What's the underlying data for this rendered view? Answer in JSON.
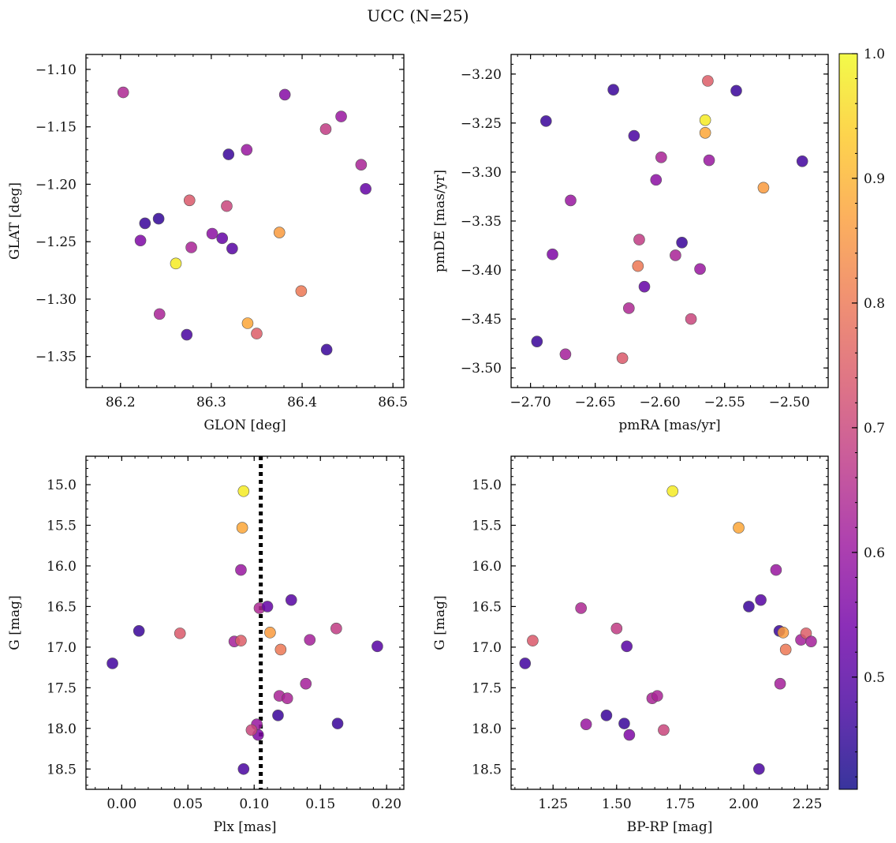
{
  "figure": {
    "title": "UCC (N=25)"
  },
  "colorbar": {
    "range": [
      0.41,
      1.0
    ],
    "ticks": [
      0.5,
      0.6,
      0.7,
      0.8,
      0.9,
      1.0
    ],
    "tick_labels": [
      "0.5",
      "0.6",
      "0.7",
      "0.8",
      "0.9",
      "1.0"
    ],
    "colormap": "plasma",
    "colors": [
      "#0d0887",
      "#46039f",
      "#7201a8",
      "#9c179e",
      "#bd3786",
      "#d8576b",
      "#ed7953",
      "#fb9f3a",
      "#fdca26",
      "#f0f921"
    ]
  },
  "chart_data": [
    {
      "id": "glon-glat",
      "type": "scatter",
      "xlabel": "GLON [deg]",
      "ylabel": "GLAT [deg]",
      "xlim": [
        86.162,
        86.512
      ],
      "ylim": [
        -1.377,
        -1.087
      ],
      "xticks": [
        86.2,
        86.3,
        86.4,
        86.5
      ],
      "xtick_labels": [
        "86.2",
        "86.3",
        "86.4",
        "86.5"
      ],
      "yticks": [
        -1.1,
        -1.15,
        -1.2,
        -1.25,
        -1.3,
        -1.35
      ],
      "ytick_labels": [
        "−1.10",
        "−1.15",
        "−1.20",
        "−1.25",
        "−1.30",
        "−1.35"
      ],
      "x": [
        86.203,
        86.381,
        86.443,
        86.426,
        86.339,
        86.319,
        86.465,
        86.47,
        86.276,
        86.317,
        86.227,
        86.242,
        86.222,
        86.375,
        86.301,
        86.312,
        86.278,
        86.323,
        86.261,
        86.399,
        86.243,
        86.34,
        86.35,
        86.273,
        86.427
      ],
      "y": [
        -1.12,
        -1.122,
        -1.141,
        -1.152,
        -1.17,
        -1.174,
        -1.183,
        -1.204,
        -1.214,
        -1.219,
        -1.234,
        -1.23,
        -1.249,
        -1.242,
        -1.243,
        -1.247,
        -1.255,
        -1.256,
        -1.269,
        -1.293,
        -1.313,
        -1.321,
        -1.33,
        -1.331,
        -1.344
      ],
      "prob": [
        0.64,
        0.57,
        0.6,
        0.68,
        0.6,
        0.46,
        0.63,
        0.52,
        0.74,
        0.7,
        0.46,
        0.45,
        0.56,
        0.86,
        0.58,
        0.52,
        0.63,
        0.5,
        0.98,
        0.8,
        0.63,
        0.88,
        0.75,
        0.48,
        0.46
      ]
    },
    {
      "id": "pmra-pmde",
      "type": "scatter",
      "xlabel": "pmRA [mas/yr]",
      "ylabel": "pmDE [mas/yr]",
      "xlim": [
        -2.715,
        -2.47
      ],
      "ylim": [
        -3.52,
        -3.18
      ],
      "xticks": [
        -2.7,
        -2.65,
        -2.6,
        -2.55,
        -2.5
      ],
      "xtick_labels": [
        "−2.70",
        "−2.65",
        "−2.60",
        "−2.55",
        "−2.50"
      ],
      "yticks": [
        -3.2,
        -3.25,
        -3.3,
        -3.35,
        -3.4,
        -3.45,
        -3.5
      ],
      "ytick_labels": [
        "−3.20",
        "−3.25",
        "−3.30",
        "−3.35",
        "−3.40",
        "−3.45",
        "−3.50"
      ],
      "x": [
        -2.563,
        -2.636,
        -2.541,
        -2.688,
        -2.565,
        -2.565,
        -2.62,
        -2.599,
        -2.562,
        -2.49,
        -2.52,
        -2.603,
        -2.669,
        -2.616,
        -2.583,
        -2.683,
        -2.588,
        -2.617,
        -2.569,
        -2.612,
        -2.576,
        -2.624,
        -2.695,
        -2.673,
        -2.629
      ],
      "y": [
        -3.207,
        -3.216,
        -3.217,
        -3.248,
        -3.247,
        -3.26,
        -3.263,
        -3.285,
        -3.288,
        -3.289,
        -3.316,
        -3.308,
        -3.329,
        -3.369,
        -3.372,
        -3.384,
        -3.385,
        -3.396,
        -3.399,
        -3.417,
        -3.45,
        -3.439,
        -3.473,
        -3.486,
        -3.49
      ],
      "prob": [
        0.75,
        0.46,
        0.46,
        0.46,
        0.98,
        0.88,
        0.48,
        0.63,
        0.6,
        0.47,
        0.86,
        0.58,
        0.6,
        0.68,
        0.46,
        0.56,
        0.63,
        0.8,
        0.6,
        0.52,
        0.7,
        0.64,
        0.46,
        0.62,
        0.74
      ]
    },
    {
      "id": "plx-g",
      "type": "scatter",
      "xlabel": "Plx [mas]",
      "ylabel": "G [mag]",
      "xlim": [
        -0.027,
        0.213
      ],
      "ylim": [
        18.75,
        14.65
      ],
      "xticks": [
        0.0,
        0.05,
        0.1,
        0.15,
        0.2
      ],
      "xtick_labels": [
        "0.00",
        "0.05",
        "0.10",
        "0.15",
        "0.20"
      ],
      "yticks": [
        15.0,
        15.5,
        16.0,
        16.5,
        17.0,
        17.5,
        18.0,
        18.5
      ],
      "ytick_labels": [
        "15.0",
        "15.5",
        "16.0",
        "16.5",
        "17.0",
        "17.5",
        "18.0",
        "18.5"
      ],
      "vline": 0.105,
      "x": [
        -0.007,
        0.013,
        0.044,
        0.085,
        0.09,
        0.092,
        0.091,
        0.09,
        0.104,
        0.11,
        0.112,
        0.12,
        0.128,
        0.119,
        0.125,
        0.118,
        0.102,
        0.103,
        0.098,
        0.142,
        0.139,
        0.162,
        0.163,
        0.193,
        0.092
      ],
      "y": [
        17.2,
        16.8,
        16.83,
        16.93,
        16.92,
        15.08,
        15.53,
        16.05,
        16.52,
        16.5,
        16.82,
        17.03,
        16.42,
        17.6,
        17.63,
        17.84,
        17.95,
        18.08,
        18.02,
        16.91,
        17.45,
        16.77,
        17.94,
        16.99,
        18.5
      ],
      "prob": [
        0.47,
        0.46,
        0.74,
        0.62,
        0.75,
        0.98,
        0.88,
        0.6,
        0.64,
        0.52,
        0.86,
        0.8,
        0.5,
        0.63,
        0.63,
        0.46,
        0.6,
        0.56,
        0.7,
        0.62,
        0.62,
        0.68,
        0.46,
        0.5,
        0.48
      ]
    },
    {
      "id": "bprp-g",
      "type": "scatter",
      "xlabel": "BP-RP [mag]",
      "ylabel": "G [mag]",
      "xlim": [
        1.085,
        2.332
      ],
      "ylim": [
        18.75,
        14.65
      ],
      "xticks": [
        1.25,
        1.5,
        1.75,
        2.0,
        2.25
      ],
      "xtick_labels": [
        "1.25",
        "1.50",
        "1.75",
        "2.00",
        "2.25"
      ],
      "yticks": [
        15.0,
        15.5,
        16.0,
        16.5,
        17.0,
        17.5,
        18.0,
        18.5
      ],
      "ytick_labels": [
        "15.0",
        "15.5",
        "16.0",
        "16.5",
        "17.0",
        "17.5",
        "18.0",
        "18.5"
      ],
      "x": [
        1.72,
        1.98,
        2.127,
        1.36,
        2.02,
        2.067,
        1.5,
        1.17,
        1.14,
        1.54,
        2.14,
        2.155,
        2.225,
        2.245,
        2.265,
        2.165,
        2.143,
        1.64,
        1.66,
        1.46,
        1.53,
        1.38,
        1.55,
        1.685,
        2.06
      ],
      "y": [
        15.08,
        15.53,
        16.05,
        16.52,
        16.5,
        16.42,
        16.77,
        16.92,
        17.2,
        16.99,
        16.8,
        16.82,
        16.91,
        16.83,
        16.93,
        17.03,
        17.45,
        17.63,
        17.6,
        17.84,
        17.94,
        17.95,
        18.08,
        18.02,
        18.5
      ],
      "prob": [
        0.98,
        0.88,
        0.6,
        0.64,
        0.46,
        0.5,
        0.68,
        0.74,
        0.47,
        0.5,
        0.46,
        0.86,
        0.62,
        0.75,
        0.62,
        0.8,
        0.62,
        0.63,
        0.63,
        0.46,
        0.46,
        0.6,
        0.56,
        0.7,
        0.48
      ]
    }
  ]
}
